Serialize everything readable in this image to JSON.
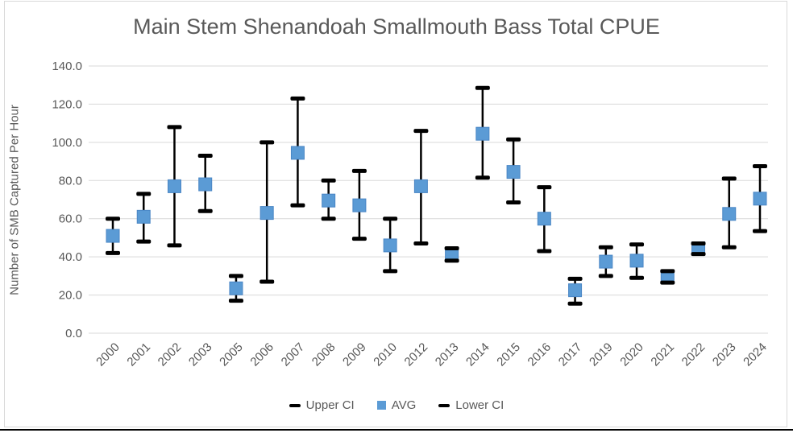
{
  "title": "Main Stem Shenandoah Smallmouth Bass Total CPUE",
  "colors": {
    "avg_marker": "#5b9bd5",
    "avg_marker_border": "#4a86c5",
    "error_bar": "#000000",
    "gridline": "#d9d9d9",
    "title_text": "#595959",
    "axis_text": "#595959",
    "chart_border": "#d9d9d9",
    "bottom_edge": "#000000"
  },
  "legend": {
    "items": [
      {
        "label": "Upper CI",
        "marker": "dash-icon"
      },
      {
        "label": "AVG",
        "marker": "square-icon"
      },
      {
        "label": "Lower CI",
        "marker": "dash-icon"
      }
    ],
    "position": "bottom"
  },
  "chart_data": {
    "type": "scatter",
    "subtype": "dot-plot-with-ci-error-bars",
    "title": "Main Stem Shenandoah Smallmouth Bass Total CPUE",
    "xlabel": "",
    "ylabel": "Number of SMB Captured Per Hour",
    "ylim": [
      0,
      140
    ],
    "ytick_interval": 20,
    "ytick_label_format": "one-decimal",
    "grid": true,
    "legend_position": "bottom",
    "categories": [
      "2000",
      "2001",
      "2002",
      "2003",
      "2005",
      "2006",
      "2007",
      "2008",
      "2009",
      "2010",
      "2012",
      "2013",
      "2014",
      "2015",
      "2016",
      "2017",
      "2019",
      "2020",
      "2021",
      "2022",
      "2023",
      "2024"
    ],
    "series": [
      {
        "name": "Upper CI",
        "role": "upper",
        "values": [
          60,
          73,
          108,
          93,
          30,
          100,
          123,
          80,
          85,
          60,
          106,
          44.5,
          128.5,
          101.5,
          76.5,
          28.5,
          45,
          46.5,
          32.5,
          47,
          81,
          87.5
        ]
      },
      {
        "name": "AVG",
        "role": "avg",
        "values": [
          51,
          61,
          77,
          78,
          23.5,
          63,
          94.5,
          69.5,
          67,
          46,
          77,
          41.5,
          104.5,
          84.5,
          60,
          22.5,
          37.5,
          38,
          29.5,
          44.5,
          62.5,
          70.5
        ]
      },
      {
        "name": "Lower CI",
        "role": "lower",
        "values": [
          42,
          48,
          46,
          64,
          17,
          27,
          67,
          60,
          49.5,
          32.5,
          47,
          38,
          81.5,
          68.5,
          43,
          15.5,
          30,
          29,
          26.5,
          41.5,
          45,
          53.5
        ]
      }
    ]
  }
}
